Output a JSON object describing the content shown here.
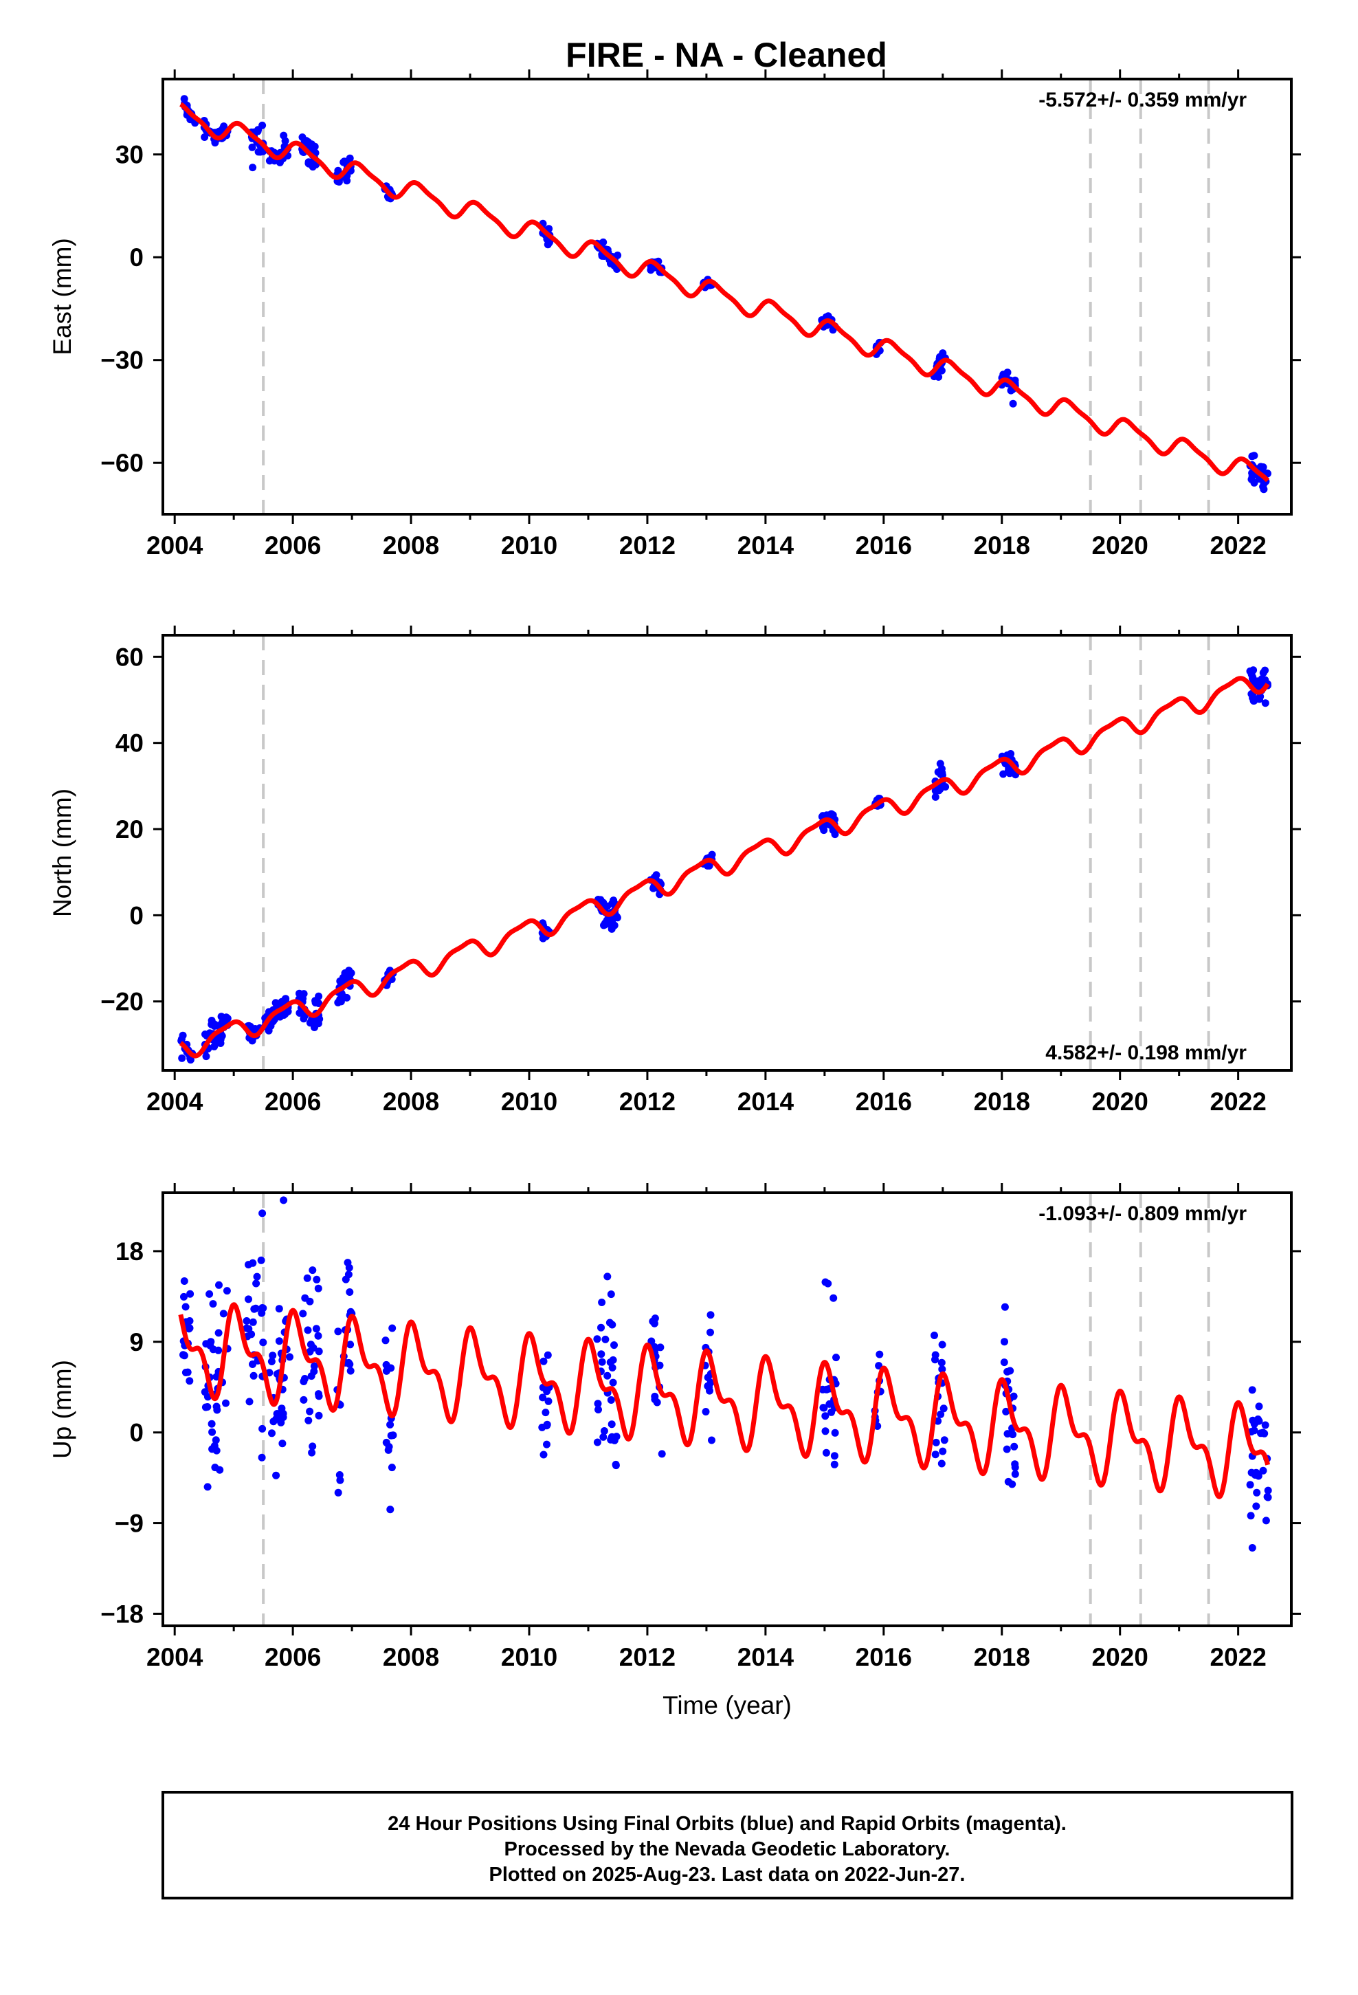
{
  "title": "FIRE  - NA - Cleaned",
  "footer": {
    "line1": "24 Hour Positions Using Final Orbits (blue) and Rapid Orbits (magenta).",
    "line2": "Processed by the Nevada Geodetic Laboratory.",
    "line3": "Plotted on 2025-Aug-23. Last data on 2022-Jun-27."
  },
  "colors": {
    "data": "#0000ff",
    "model": "#ff0000",
    "steps": "#c8c8c8",
    "frame": "#000000"
  },
  "chart_data": [
    {
      "type": "scatter",
      "ylabel": "East (mm)",
      "xlabel": "",
      "rate_label": "-5.572+/- 0.359 mm/yr",
      "rate_position": "top-right",
      "xlim": [
        2003.8,
        2022.9
      ],
      "ylim": [
        -75,
        52
      ],
      "xticks": [
        2004,
        2006,
        2008,
        2010,
        2012,
        2014,
        2016,
        2018,
        2020,
        2022
      ],
      "yticks": [
        30,
        0,
        -30,
        -60
      ],
      "ytick_labels": [
        "30",
        "0",
        "−30",
        "−60"
      ],
      "step_lines": [
        2005.5,
        2019.5,
        2020.35,
        2021.5
      ],
      "model": {
        "trend_at_2004": 42.2,
        "trend_at_2022": -61.5,
        "annual_amp": 2.8,
        "annual_phase": 0.6,
        "semi_amp": 0.8,
        "semi_phase": 1.4
      },
      "clusters": [
        [
          2004.15,
          2004.35,
          0.9
        ],
        [
          2004.5,
          2004.9,
          1.0
        ],
        [
          2005.3,
          2005.5,
          2.2
        ],
        [
          2005.6,
          2005.95,
          1.2
        ],
        [
          2006.15,
          2006.4,
          2.0
        ],
        [
          2006.75,
          2006.98,
          1.7
        ],
        [
          2007.55,
          2007.7,
          1.0
        ],
        [
          2010.2,
          2010.35,
          1.3
        ],
        [
          2011.15,
          2011.5,
          1.0
        ],
        [
          2012.05,
          2012.25,
          1.2
        ],
        [
          2012.95,
          2013.1,
          0.8
        ],
        [
          2014.95,
          2015.2,
          1.3
        ],
        [
          2015.85,
          2015.95,
          0.6
        ],
        [
          2016.85,
          2017.05,
          1.4
        ],
        [
          2018.0,
          2018.25,
          1.3
        ],
        [
          2022.2,
          2022.52,
          2.2
        ]
      ],
      "series": [
        {
          "name": "Final Orbits",
          "values": []
        }
      ]
    },
    {
      "type": "scatter",
      "ylabel": "North (mm)",
      "xlabel": "",
      "rate_label": "4.582+/- 0.198 mm/yr",
      "rate_position": "bottom-right",
      "xlim": [
        2003.8,
        2022.9
      ],
      "ylim": [
        -36,
        65
      ],
      "xticks": [
        2004,
        2006,
        2008,
        2010,
        2012,
        2014,
        2016,
        2018,
        2020,
        2022
      ],
      "yticks": [
        60,
        40,
        20,
        0,
        -20
      ],
      "ytick_labels": [
        "60",
        "40",
        "20",
        "0",
        "−20"
      ],
      "step_lines": [
        2005.5,
        2019.5,
        2020.35,
        2021.5
      ],
      "model": {
        "trend_at_2004": -31.5,
        "trend_at_2022": 52.9,
        "annual_amp": 2.2,
        "annual_phase": 2.2,
        "semi_amp": 0.7,
        "semi_phase": 0.3
      },
      "clusters": [
        [
          2004.1,
          2004.3,
          1.0
        ],
        [
          2004.5,
          2004.9,
          1.8
        ],
        [
          2005.2,
          2005.45,
          1.0
        ],
        [
          2005.5,
          2005.95,
          1.2
        ],
        [
          2006.1,
          2006.45,
          1.8
        ],
        [
          2006.75,
          2007.0,
          1.5
        ],
        [
          2007.55,
          2007.7,
          1.0
        ],
        [
          2010.2,
          2010.35,
          1.2
        ],
        [
          2011.15,
          2011.5,
          1.8
        ],
        [
          2012.05,
          2012.25,
          1.0
        ],
        [
          2012.95,
          2013.1,
          0.8
        ],
        [
          2014.95,
          2015.2,
          1.5
        ],
        [
          2015.85,
          2015.95,
          0.6
        ],
        [
          2016.85,
          2017.05,
          1.8
        ],
        [
          2018.0,
          2018.25,
          1.2
        ],
        [
          2022.2,
          2022.52,
          2.0
        ]
      ],
      "series": [
        {
          "name": "Final Orbits",
          "values": []
        }
      ]
    },
    {
      "type": "scatter",
      "ylabel": "Up (mm)",
      "xlabel": "Time (year)",
      "rate_label": "-1.093+/- 0.809 mm/yr",
      "rate_position": "top-right",
      "xlim": [
        2003.8,
        2022.9
      ],
      "ylim": [
        -19.2,
        23.8
      ],
      "xticks": [
        2004,
        2006,
        2008,
        2010,
        2012,
        2014,
        2016,
        2018,
        2020,
        2022
      ],
      "yticks": [
        18,
        9,
        0,
        -9,
        -18
      ],
      "ytick_labels": [
        "18",
        "9",
        "0",
        "−9",
        "−18"
      ],
      "step_lines": [
        2005.5,
        2019.5,
        2020.35,
        2021.5
      ],
      "model": {
        "trend_at_2004": 8.5,
        "trend_at_2022": -1.8,
        "annual_amp": 3.5,
        "annual_phase": 1.0,
        "semi_amp": 2.0,
        "semi_phase": 2.0
      },
      "clusters": [
        [
          2004.1,
          2004.3,
          3.0
        ],
        [
          2004.5,
          2004.9,
          5.0
        ],
        [
          2005.2,
          2005.5,
          4.0
        ],
        [
          2005.6,
          2005.95,
          4.0
        ],
        [
          2006.15,
          2006.45,
          4.5
        ],
        [
          2006.75,
          2007.0,
          4.0
        ],
        [
          2007.55,
          2007.7,
          2.5
        ],
        [
          2010.2,
          2010.35,
          4.0
        ],
        [
          2011.15,
          2011.5,
          4.5
        ],
        [
          2012.05,
          2012.25,
          4.5
        ],
        [
          2012.95,
          2013.1,
          3.5
        ],
        [
          2014.95,
          2015.2,
          4.5
        ],
        [
          2015.85,
          2015.95,
          2.5
        ],
        [
          2016.85,
          2017.05,
          5.0
        ],
        [
          2018.0,
          2018.25,
          3.5
        ],
        [
          2022.2,
          2022.52,
          4.0
        ]
      ],
      "series": [
        {
          "name": "Final Orbits",
          "values": []
        }
      ]
    }
  ]
}
